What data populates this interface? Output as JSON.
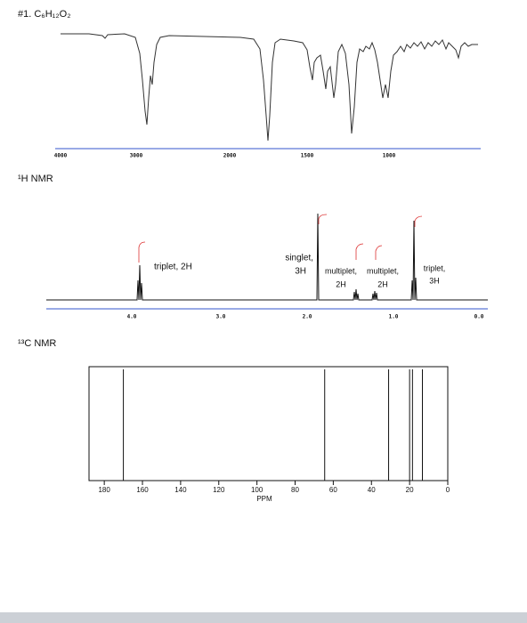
{
  "title": "#1. C₆H₁₂O₂",
  "ir": {
    "xticks": [
      "4000",
      "3000",
      "2000",
      "1500",
      "1000"
    ]
  },
  "h_nmr": {
    "title": "¹H NMR",
    "xticks": [
      "4.0",
      "3.0",
      "2.0",
      "1.0",
      "0.0"
    ],
    "annotations": [
      [
        "triplet, 2H"
      ],
      [
        "singlet,",
        "3H"
      ],
      [
        "multiplet,",
        "2H"
      ],
      [
        "multiplet,",
        "2H"
      ],
      [
        "triplet,",
        "3H"
      ]
    ]
  },
  "c_nmr": {
    "title": "¹³C NMR",
    "xlabel": "PPM",
    "xlim": [
      188,
      0
    ],
    "xticks": [
      180,
      160,
      140,
      120,
      100,
      80,
      60,
      40,
      20,
      0
    ],
    "peaks": [
      170,
      64.5,
      31,
      20,
      18.5,
      13.3
    ]
  }
}
